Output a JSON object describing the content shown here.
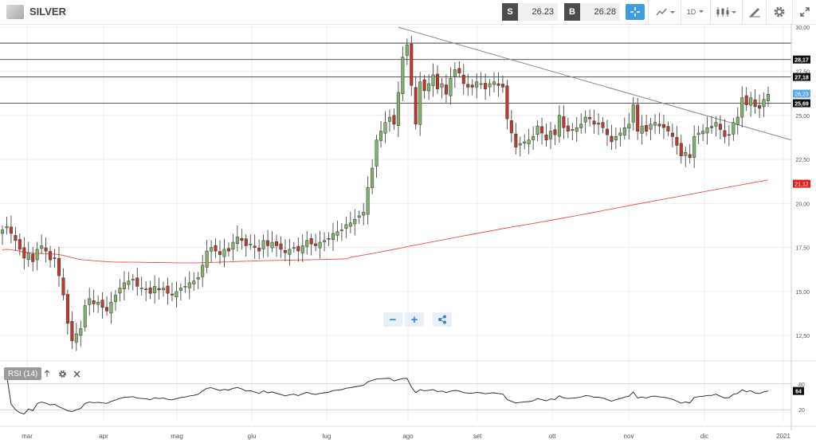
{
  "header": {
    "symbol": "SILVER",
    "sell_tag": "S",
    "sell_price": "26.23",
    "buy_tag": "B",
    "buy_price": "26.28",
    "timeframe": "1D"
  },
  "icons": [
    "instrument-logo",
    "crosshair-icon",
    "chart-type-icon",
    "candles-icon",
    "draw-icon",
    "gear-icon",
    "fullscreen-icon",
    "arrow-up-icon",
    "close-icon",
    "share-icon"
  ],
  "colors": {
    "bull": "#7fb46a",
    "bear": "#c0392b",
    "sma": "#ef4b4b",
    "accent": "#3e9ee0",
    "level": "#333333"
  },
  "chart_data": {
    "type": "candlestick",
    "y_ticks": [
      "30,00",
      "27,50",
      "25,00",
      "22,50",
      "20,00",
      "17,50",
      "15,00",
      "12,50"
    ],
    "y_tick_values": [
      30,
      27.5,
      25,
      22.5,
      20,
      17.5,
      15,
      12.5
    ],
    "ylim": [
      11.2,
      30.1
    ],
    "x_ticks": [
      "mar",
      "apr",
      "mag",
      "giu",
      "lug",
      "ago",
      "set",
      "ott",
      "nov",
      "dic",
      "2021"
    ],
    "x_tick_months": [
      2,
      3,
      4,
      5,
      6,
      7,
      8,
      9,
      10,
      11,
      12
    ],
    "horizontal_levels": [
      "28,17",
      "27,18",
      "25,69"
    ],
    "level_values": [
      28.17,
      27.18,
      25.69,
      29.1
    ],
    "current_price_label": "26,23",
    "current_price": 26.23,
    "sma_label": "21,12",
    "sma_value": 21.12,
    "closes": [
      18.5,
      18.7,
      18.3,
      17.9,
      17.4,
      16.9,
      17.2,
      16.7,
      17.4,
      17.6,
      17.3,
      16.8,
      16.9,
      15.9,
      14.8,
      13.2,
      12.2,
      12.6,
      12.9,
      14.2,
      14.6,
      14.3,
      14.4,
      14.1,
      13.9,
      14.4,
      14.8,
      15.2,
      15.5,
      15.6,
      15.7,
      15.3,
      15.2,
      15.1,
      14.9,
      15.3,
      15.1,
      15.2,
      14.9,
      14.8,
      15.0,
      15.2,
      15.3,
      15.5,
      15.6,
      15.8,
      16.5,
      17.3,
      17.5,
      17.3,
      17.1,
      17.4,
      17.3,
      17.8,
      18.1,
      17.9,
      17.6,
      17.7,
      17.5,
      17.3,
      17.9,
      17.6,
      17.8,
      17.6,
      17.4,
      17.2,
      17.4,
      17.5,
      17.3,
      17.6,
      17.9,
      17.7,
      17.6,
      17.8,
      17.9,
      18.0,
      18.3,
      18.4,
      18.5,
      18.8,
      18.9,
      19.1,
      19.3,
      19.5,
      20.9,
      22.0,
      23.6,
      24.1,
      24.6,
      24.9,
      24.5,
      26.3,
      28.3,
      29.0,
      26.7,
      24.5,
      26.9,
      26.4,
      26.8,
      27.3,
      26.5,
      26.8,
      26.2,
      27.1,
      27.6,
      27.4,
      26.8,
      26.6,
      26.6,
      26.9,
      26.8,
      26.5,
      26.8,
      26.9,
      26.7,
      26.6,
      24.8,
      24.0,
      23.2,
      23.4,
      23.5,
      23.6,
      23.8,
      24.4,
      24.0,
      23.6,
      24.1,
      23.9,
      25.0,
      24.3,
      24.1,
      24.2,
      24.3,
      24.5,
      24.9,
      24.8,
      24.5,
      24.5,
      24.3,
      23.9,
      23.5,
      23.8,
      24.0,
      24.3,
      24.5,
      25.6,
      24.1,
      24.4,
      24.1,
      24.5,
      24.6,
      24.4,
      24.3,
      24.1,
      23.8,
      23.3,
      22.7,
      22.9,
      22.6,
      23.8,
      24.0,
      24.1,
      24.3,
      24.3,
      24.6,
      24.2,
      23.8,
      23.9,
      24.6,
      24.9,
      26.0,
      25.6,
      26.0,
      25.5,
      25.4,
      25.9,
      26.2
    ]
  }
}
